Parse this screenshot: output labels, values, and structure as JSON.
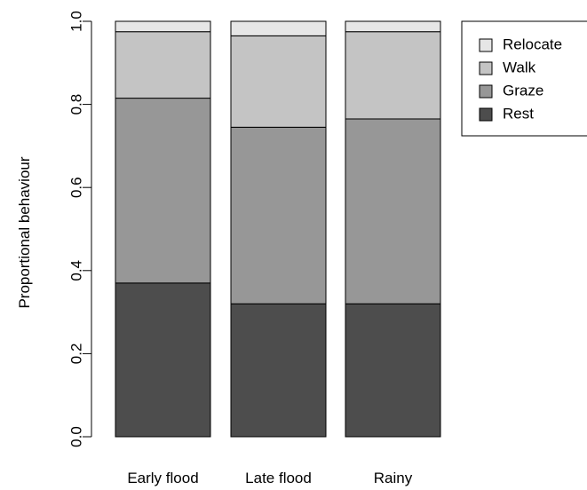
{
  "chart_data": {
    "type": "bar",
    "stacked": true,
    "categories": [
      "Early flood",
      "Late flood",
      "Rainy"
    ],
    "series": [
      {
        "name": "Rest",
        "values": [
          0.37,
          0.32,
          0.32
        ],
        "color": "#4d4d4d"
      },
      {
        "name": "Graze",
        "values": [
          0.445,
          0.425,
          0.445
        ],
        "color": "#979797"
      },
      {
        "name": "Walk",
        "values": [
          0.16,
          0.22,
          0.21
        ],
        "color": "#c4c4c4"
      },
      {
        "name": "Relocate",
        "values": [
          0.025,
          0.035,
          0.025
        ],
        "color": "#e6e6e6"
      }
    ],
    "title": "",
    "xlabel": "",
    "ylabel": "Proportional behaviour",
    "ylim": [
      0,
      1
    ],
    "yticks": [
      0,
      0.2,
      0.4,
      0.6,
      0.8,
      1
    ],
    "ytick_labels": [
      "0.0",
      "0.2",
      "0.4",
      "0.6",
      "0.8",
      "1.0"
    ],
    "legend_order": [
      "Relocate",
      "Walk",
      "Graze",
      "Rest"
    ],
    "legend_position": "top-right",
    "grid": false
  }
}
